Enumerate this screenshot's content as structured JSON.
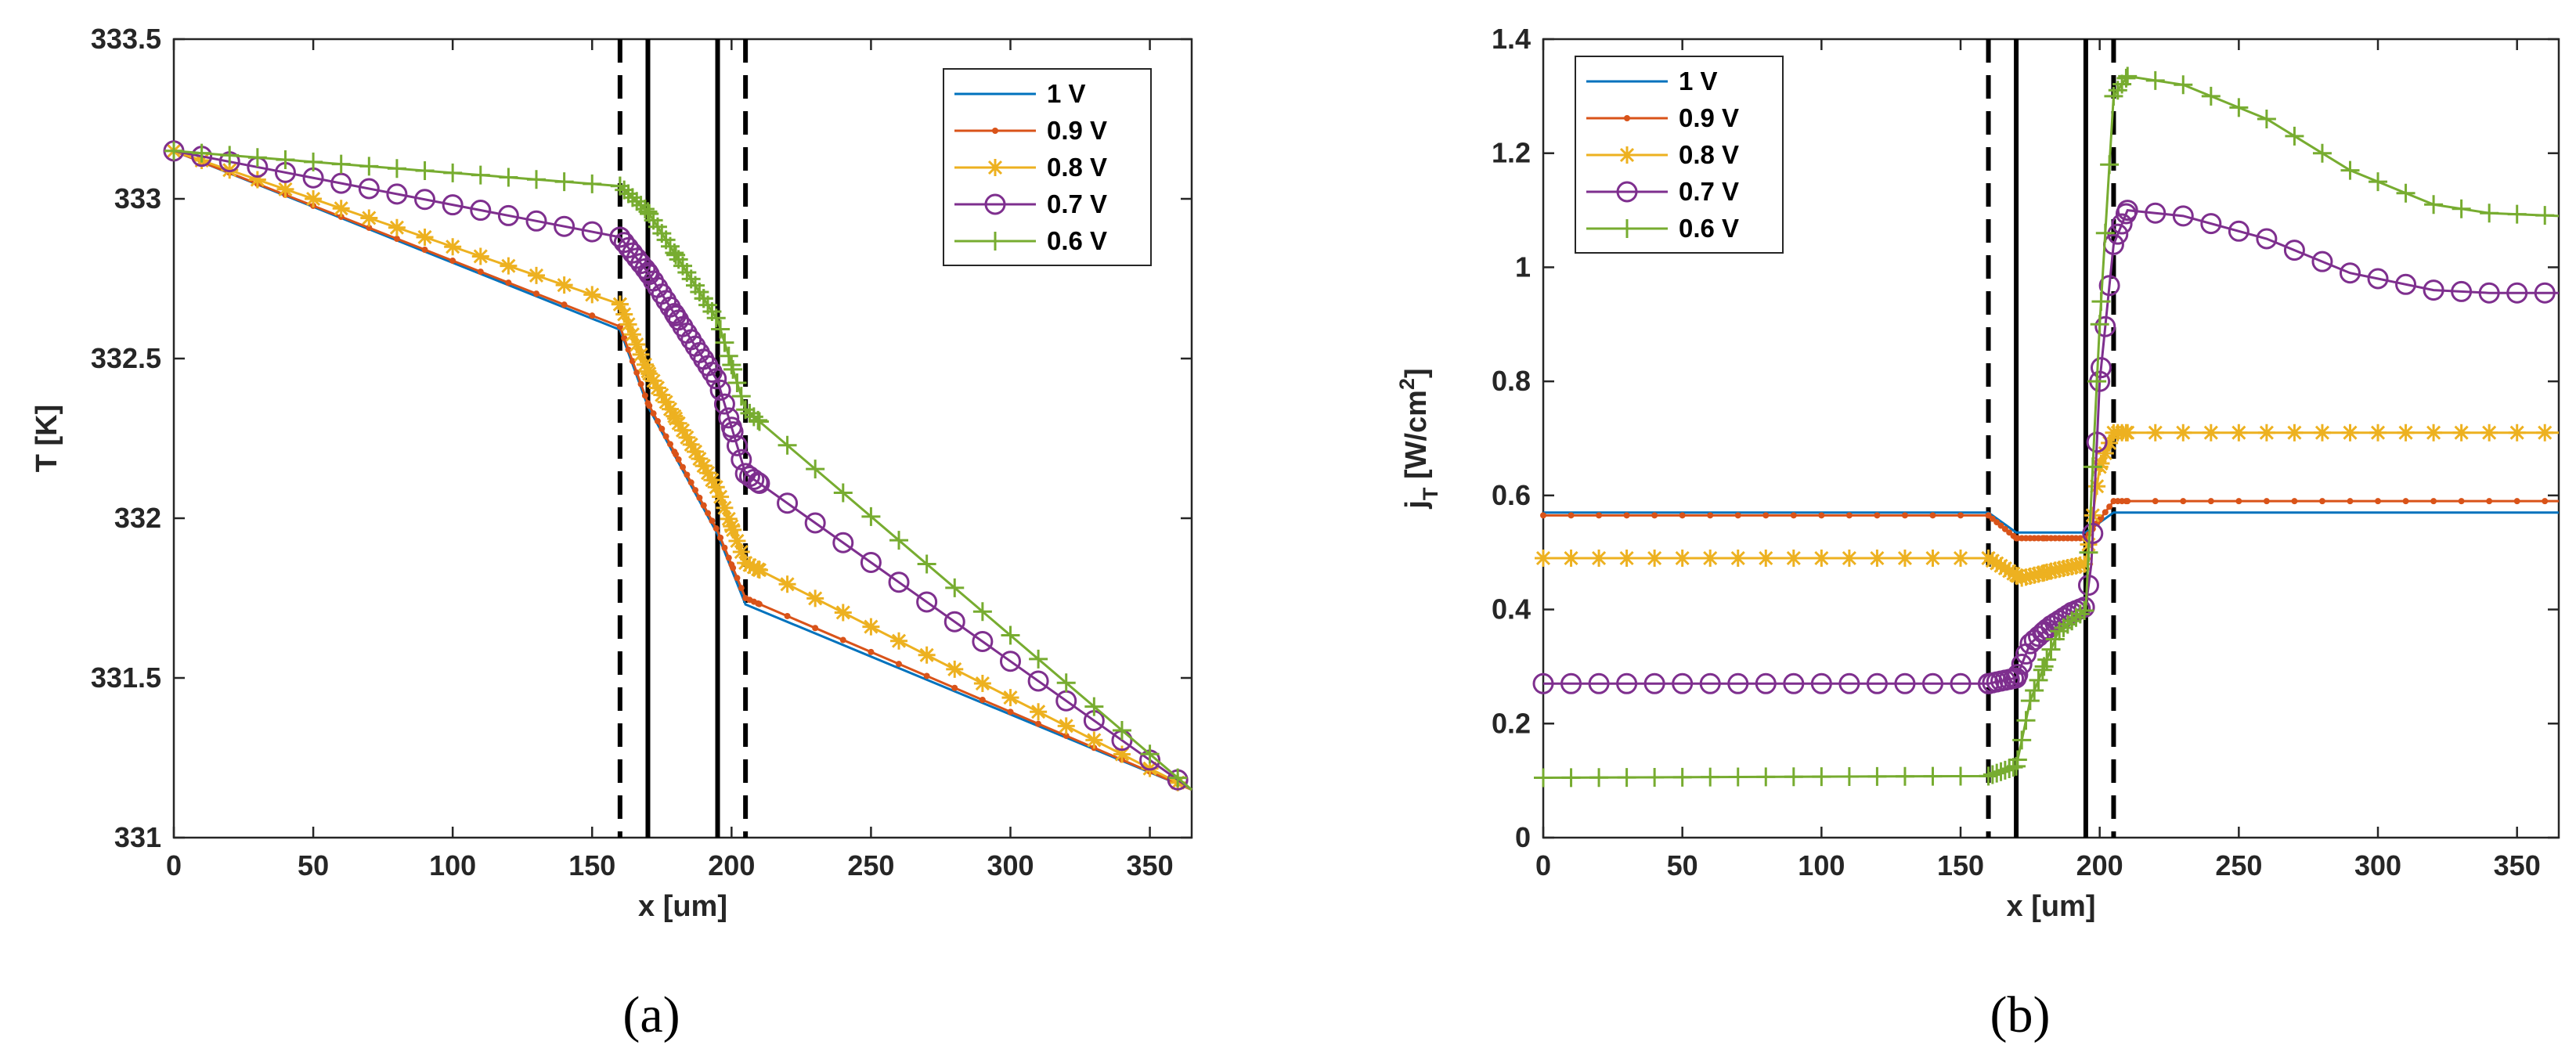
{
  "chart_data": [
    {
      "type": "line",
      "caption": "(a)",
      "xlabel": "x [um]",
      "ylabel": "T [K]",
      "xlim": [
        0,
        365
      ],
      "ylim": [
        331,
        333.5
      ],
      "xticks": [
        0,
        50,
        100,
        150,
        200,
        250,
        300,
        350
      ],
      "yticks": [
        331,
        331.5,
        332,
        332.5,
        333,
        333.5
      ],
      "ytick_labels": [
        "331",
        "331.5",
        "332",
        "332.5",
        "333",
        "333.5"
      ],
      "legend_position": "top-right",
      "vlines": [
        {
          "x": 160,
          "style": "dashed"
        },
        {
          "x": 170,
          "style": "solid"
        },
        {
          "x": 195,
          "style": "solid"
        },
        {
          "x": 205,
          "style": "dashed"
        }
      ],
      "series": [
        {
          "name": "1 V",
          "color": "#0072BD",
          "marker": "none",
          "x": [
            0,
            160,
            170,
            195,
            205,
            365
          ],
          "y": [
            333.15,
            332.59,
            332.35,
            331.95,
            331.73,
            331.15
          ]
        },
        {
          "name": "0.9 V",
          "color": "#D95319",
          "marker": "dot",
          "x": [
            0,
            160,
            170,
            195,
            205,
            365
          ],
          "y": [
            333.15,
            332.6,
            332.36,
            331.96,
            331.75,
            331.15
          ]
        },
        {
          "name": "0.8 V",
          "color": "#EDB120",
          "marker": "star",
          "x": [
            0,
            160,
            170,
            195,
            205,
            365
          ],
          "y": [
            333.15,
            332.67,
            332.46,
            332.09,
            331.86,
            331.15
          ]
        },
        {
          "name": "0.7 V",
          "color": "#7E2F8E",
          "marker": "circle",
          "x": [
            0,
            160,
            170,
            195,
            205,
            365
          ],
          "y": [
            333.15,
            332.88,
            332.77,
            332.43,
            332.14,
            331.15
          ]
        },
        {
          "name": "0.6 V",
          "color": "#77AC30",
          "marker": "plus",
          "x": [
            0,
            160,
            170,
            195,
            205,
            365
          ],
          "y": [
            333.15,
            333.04,
            332.96,
            332.62,
            332.34,
            331.15
          ]
        }
      ]
    },
    {
      "type": "line",
      "caption": "(b)",
      "xlabel": "x [um]",
      "ylabel": "jT [W/cm2]",
      "ylabel_main": "j",
      "ylabel_sub": "T",
      "ylabel_mid": " [W/cm",
      "ylabel_sup": "2",
      "ylabel_end": "]",
      "xlim": [
        0,
        365
      ],
      "ylim": [
        0,
        1.4
      ],
      "xticks": [
        0,
        50,
        100,
        150,
        200,
        250,
        300,
        350
      ],
      "yticks": [
        0,
        0.2,
        0.4,
        0.6,
        0.8,
        1,
        1.2,
        1.4
      ],
      "ytick_labels": [
        "0",
        "0.2",
        "0.4",
        "0.6",
        "0.8",
        "1",
        "1.2",
        "1.4"
      ],
      "legend_position": "top-left",
      "vlines": [
        {
          "x": 160,
          "style": "dashed"
        },
        {
          "x": 170,
          "style": "solid"
        },
        {
          "x": 195,
          "style": "solid"
        },
        {
          "x": 205,
          "style": "dashed"
        }
      ],
      "series": [
        {
          "name": "1 V",
          "color": "#0072BD",
          "marker": "none",
          "x": [
            0,
            160,
            170,
            195,
            205,
            365
          ],
          "y": [
            0.57,
            0.57,
            0.535,
            0.535,
            0.57,
            0.57
          ]
        },
        {
          "name": "0.9 V",
          "color": "#D95319",
          "marker": "dot",
          "x": [
            0,
            160,
            170,
            195,
            205,
            365
          ],
          "y": [
            0.565,
            0.565,
            0.525,
            0.525,
            0.59,
            0.59
          ]
        },
        {
          "name": "0.8 V",
          "color": "#EDB120",
          "marker": "star",
          "x": [
            0,
            160,
            170,
            172,
            185,
            195,
            200,
            205,
            365
          ],
          "y": [
            0.49,
            0.49,
            0.46,
            0.455,
            0.47,
            0.48,
            0.65,
            0.71,
            0.71
          ]
        },
        {
          "name": "0.7 V",
          "color": "#7E2F8E",
          "marker": "circle",
          "x": [
            0,
            160,
            170,
            175,
            182,
            190,
            195,
            197,
            200,
            205,
            210,
            230,
            260,
            290,
            320,
            340,
            365
          ],
          "y": [
            0.27,
            0.27,
            0.28,
            0.34,
            0.37,
            0.395,
            0.405,
            0.48,
            0.8,
            1.04,
            1.1,
            1.09,
            1.05,
            0.99,
            0.96,
            0.955,
            0.955
          ]
        },
        {
          "name": "0.6 V",
          "color": "#77AC30",
          "marker": "plus",
          "x": [
            0,
            160,
            170,
            175,
            185,
            195,
            200,
            205,
            210,
            230,
            260,
            290,
            320,
            340,
            365
          ],
          "y": [
            0.105,
            0.108,
            0.125,
            0.24,
            0.36,
            0.4,
            0.9,
            1.3,
            1.335,
            1.32,
            1.26,
            1.17,
            1.11,
            1.095,
            1.09
          ]
        }
      ]
    }
  ]
}
